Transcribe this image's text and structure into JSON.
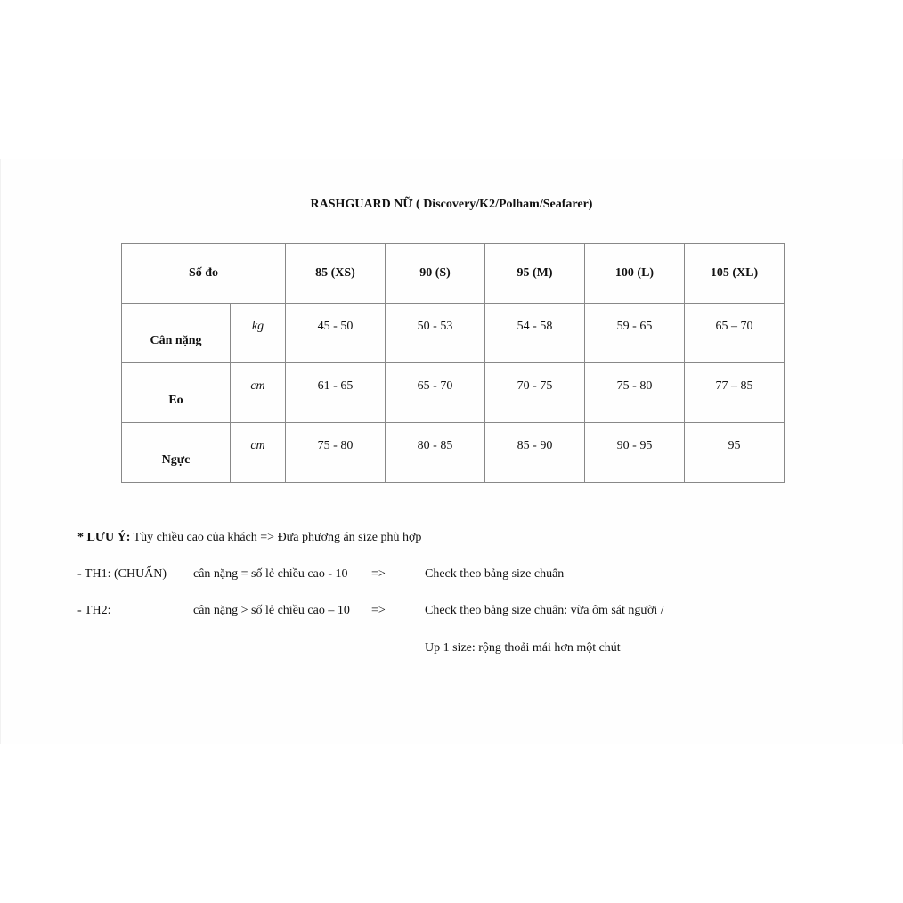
{
  "title": "RASHGUARD NỮ ( Discovery/K2/Polham/Seafarer)",
  "table": {
    "header_label": "Số đo",
    "sizes": [
      "85 (XS)",
      "90 (S)",
      "95 (M)",
      "100 (L)",
      "105 (XL)"
    ],
    "rows": [
      {
        "label": "Cân nặng",
        "unit": "kg",
        "values": [
          "45 - 50",
          "50 - 53",
          "54 - 58",
          "59 - 65",
          "65 – 70"
        ]
      },
      {
        "label": "Eo",
        "unit": "cm",
        "values": [
          "61 - 65",
          "65 - 70",
          "70 - 75",
          "75 - 80",
          "77 – 85"
        ]
      },
      {
        "label": "Ngực",
        "unit": "cm",
        "values": [
          "75 - 80",
          "80 - 85",
          "85 - 90",
          "90 - 95",
          "95"
        ]
      }
    ]
  },
  "notes": {
    "heading_bold": "* LƯU Ý:",
    "heading_text": " Tùy chiều cao của khách => Đưa phương án size phù hợp",
    "th1": {
      "label": "- TH1: (CHUẨN)",
      "rule": "cân nặng = số lẻ chiều cao - 10",
      "arrow": "=>",
      "result": "Check theo bảng size chuẩn"
    },
    "th2": {
      "label": "- TH2:",
      "rule": "cân nặng > số lẻ chiều cao – 10",
      "arrow": "=>",
      "result": "Check theo bảng size chuẩn: vừa ôm sát người /",
      "result2": "Up 1 size: rộng thoải mái hơn một chút"
    }
  }
}
